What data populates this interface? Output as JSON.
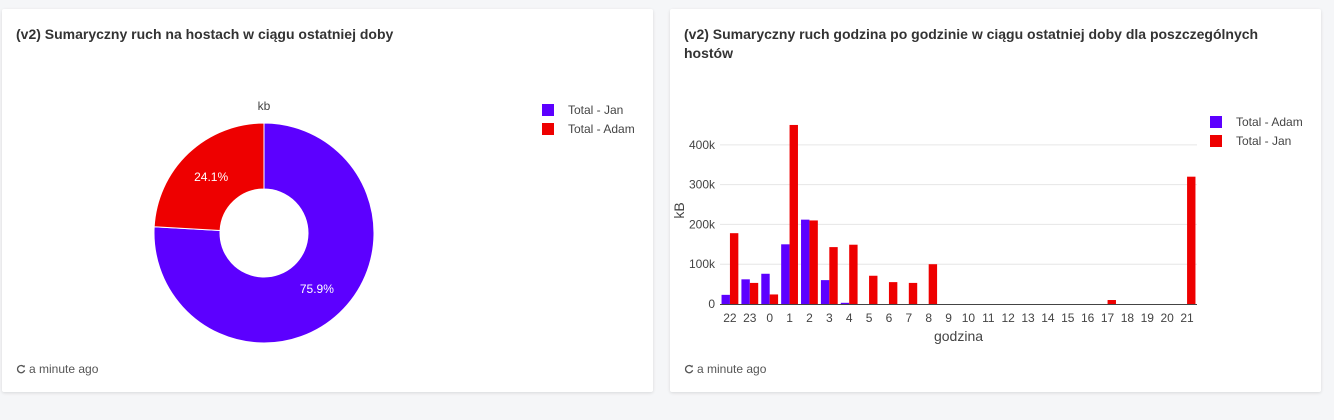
{
  "left_card": {
    "title": "(v2) Sumaryczny ruch na hostach w ciągu ostatniej doby",
    "footer": "a minute ago"
  },
  "right_card": {
    "title": "(v2) Sumaryczny ruch godzina po godzinie w ciągu ostatniej doby dla poszczególnych hostów",
    "footer": "a minute ago"
  },
  "icons": {
    "refresh": "refresh-icon"
  },
  "chart_data": [
    {
      "type": "pie",
      "hole": true,
      "title": "kb",
      "labels": [
        "Total - Jan",
        "Total - Adam"
      ],
      "values": [
        75.9,
        24.1
      ],
      "value_labels": [
        "75.9%",
        "24.1%"
      ],
      "colors": [
        "#5c00ff",
        "#ee0000"
      ],
      "legend": "top-right"
    },
    {
      "type": "bar",
      "xlabel": "godzina",
      "ylabel": "kB",
      "ylim": [
        0,
        470000
      ],
      "y_ticks": [
        0,
        100000,
        200000,
        300000,
        400000
      ],
      "y_tick_labels": [
        "0",
        "100k",
        "200k",
        "300k",
        "400k"
      ],
      "categories": [
        "22",
        "23",
        "0",
        "1",
        "2",
        "3",
        "4",
        "5",
        "6",
        "7",
        "8",
        "9",
        "10",
        "11",
        "12",
        "13",
        "14",
        "15",
        "16",
        "17",
        "18",
        "19",
        "20",
        "21"
      ],
      "grid": true,
      "legend": "top-right",
      "series": [
        {
          "name": "Total - Adam",
          "color": "#5c00ff",
          "values": [
            23000,
            62000,
            76000,
            150000,
            212000,
            60000,
            3000,
            0,
            0,
            0,
            0,
            0,
            0,
            0,
            0,
            0,
            0,
            0,
            0,
            0,
            0,
            0,
            0,
            0
          ]
        },
        {
          "name": "Total - Jan",
          "color": "#ee0000",
          "values": [
            178000,
            53000,
            24000,
            450000,
            210000,
            143000,
            149000,
            71000,
            55000,
            53000,
            100000,
            0,
            0,
            0,
            0,
            0,
            0,
            0,
            0,
            10000,
            0,
            0,
            0,
            320000
          ]
        }
      ]
    }
  ]
}
